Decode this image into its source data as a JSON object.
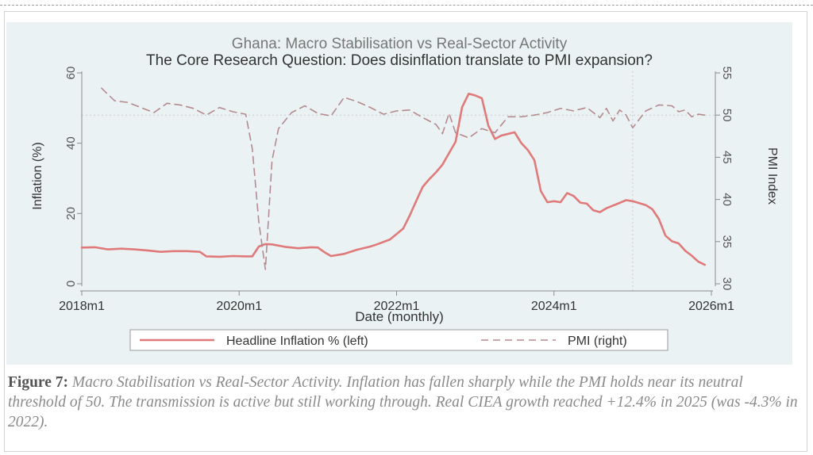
{
  "caption": {
    "label": "Figure 7:",
    "text": "Macro Stabilisation vs Real-Sector Activity. Inflation has fallen sharply while the PMI holds near its neutral threshold of 50. The transmission is active but still working through. Real CIEA growth reached +12.4% in 2025 (was -4.3% in 2022)."
  },
  "chart_data": {
    "type": "line",
    "title": "Ghana: Macro Stabilisation vs Real-Sector Activity",
    "subtitle": "The Core Research Question: Does disinflation translate to PMI expansion?",
    "xlabel": "Date (monthly)",
    "ylabel_left": "Inflation (%)",
    "ylabel_right": "PMI Index",
    "x_ticks": [
      "2018m1",
      "2020m1",
      "2022m1",
      "2024m1",
      "2026m1"
    ],
    "x_range": [
      "2018m1",
      "2026m1"
    ],
    "y_left_ticks": [
      "0",
      "20",
      "40",
      "60"
    ],
    "y_left_range": [
      0,
      60
    ],
    "y_right_ticks": [
      "30",
      "35",
      "40",
      "45",
      "50",
      "55"
    ],
    "y_right_range": [
      30,
      55
    ],
    "reference_lines": {
      "pmi_neutral": 50,
      "vertical_date": "2025m1"
    },
    "legend_position": "bottom",
    "colors": {
      "inflation": "#e07a7a",
      "pmi": "#b58a8e",
      "reference": "#cccccc",
      "axis": "#8c8c8c",
      "title": "#777777"
    },
    "series": [
      {
        "name": "Headline Inflation % (left)",
        "axis": "left",
        "style": "solid",
        "points": [
          [
            "2018m1",
            10.3
          ],
          [
            "2018m3",
            10.4
          ],
          [
            "2018m5",
            9.8
          ],
          [
            "2018m7",
            10.0
          ],
          [
            "2018m9",
            9.8
          ],
          [
            "2018m11",
            9.5
          ],
          [
            "2019m1",
            9.1
          ],
          [
            "2019m3",
            9.3
          ],
          [
            "2019m5",
            9.3
          ],
          [
            "2019m7",
            9.1
          ],
          [
            "2019m8",
            7.8
          ],
          [
            "2019m10",
            7.7
          ],
          [
            "2019m12",
            7.9
          ],
          [
            "2020m2",
            7.8
          ],
          [
            "2020m3",
            7.8
          ],
          [
            "2020m4",
            10.6
          ],
          [
            "2020m5",
            11.3
          ],
          [
            "2020m6",
            11.2
          ],
          [
            "2020m8",
            10.5
          ],
          [
            "2020m10",
            10.1
          ],
          [
            "2020m12",
            10.4
          ],
          [
            "2021m1",
            10.3
          ],
          [
            "2021m2",
            9.0
          ],
          [
            "2021m3",
            7.9
          ],
          [
            "2021m5",
            8.5
          ],
          [
            "2021m7",
            9.7
          ],
          [
            "2021m9",
            10.6
          ],
          [
            "2021m10",
            11.2
          ],
          [
            "2021m12",
            12.6
          ],
          [
            "2022m2",
            15.7
          ],
          [
            "2022m3",
            19.4
          ],
          [
            "2022m4",
            23.6
          ],
          [
            "2022m5",
            27.6
          ],
          [
            "2022m6",
            29.8
          ],
          [
            "2022m7",
            31.7
          ],
          [
            "2022m8",
            33.9
          ],
          [
            "2022m9",
            37.2
          ],
          [
            "2022m10",
            40.4
          ],
          [
            "2022m11",
            50.3
          ],
          [
            "2022m12",
            54.1
          ],
          [
            "2023m1",
            53.6
          ],
          [
            "2023m2",
            52.8
          ],
          [
            "2023m3",
            45.0
          ],
          [
            "2023m4",
            41.2
          ],
          [
            "2023m5",
            42.2
          ],
          [
            "2023m7",
            43.1
          ],
          [
            "2023m8",
            40.1
          ],
          [
            "2023m9",
            38.1
          ],
          [
            "2023m10",
            35.2
          ],
          [
            "2023m11",
            26.4
          ],
          [
            "2023m12",
            23.2
          ],
          [
            "2024m1",
            23.5
          ],
          [
            "2024m2",
            23.2
          ],
          [
            "2024m3",
            25.8
          ],
          [
            "2024m4",
            25.0
          ],
          [
            "2024m5",
            23.1
          ],
          [
            "2024m6",
            22.8
          ],
          [
            "2024m7",
            20.9
          ],
          [
            "2024m8",
            20.4
          ],
          [
            "2024m9",
            21.5
          ],
          [
            "2024m11",
            23.0
          ],
          [
            "2024m12",
            23.8
          ],
          [
            "2025m1",
            23.5
          ],
          [
            "2025m3",
            22.4
          ],
          [
            "2025m4",
            21.2
          ],
          [
            "2025m5",
            18.4
          ],
          [
            "2025m6",
            13.7
          ],
          [
            "2025m7",
            12.1
          ],
          [
            "2025m8",
            11.5
          ],
          [
            "2025m9",
            9.4
          ],
          [
            "2025m10",
            8.0
          ],
          [
            "2025m11",
            6.3
          ],
          [
            "2025m12",
            5.4
          ]
        ]
      },
      {
        "name": "PMI (right)",
        "axis": "right",
        "style": "dashed",
        "points": [
          [
            "2018m4",
            53.2
          ],
          [
            "2018m6",
            51.7
          ],
          [
            "2018m8",
            51.5
          ],
          [
            "2018m10",
            50.9
          ],
          [
            "2018m12",
            50.3
          ],
          [
            "2019m2",
            51.4
          ],
          [
            "2019m4",
            51.2
          ],
          [
            "2019m6",
            50.8
          ],
          [
            "2019m8",
            50.0
          ],
          [
            "2019m10",
            50.9
          ],
          [
            "2019m12",
            50.4
          ],
          [
            "2020m2",
            50.1
          ],
          [
            "2020m3",
            46.0
          ],
          [
            "2020m4",
            37.3
          ],
          [
            "2020m5",
            31.7
          ],
          [
            "2020m6",
            44.6
          ],
          [
            "2020m7",
            48.4
          ],
          [
            "2020m9",
            50.3
          ],
          [
            "2020m11",
            51.1
          ],
          [
            "2021m1",
            50.2
          ],
          [
            "2021m3",
            49.9
          ],
          [
            "2021m5",
            52.1
          ],
          [
            "2021m7",
            51.6
          ],
          [
            "2021m9",
            50.9
          ],
          [
            "2021m11",
            50.1
          ],
          [
            "2022m1",
            50.5
          ],
          [
            "2022m3",
            50.6
          ],
          [
            "2022m5",
            49.7
          ],
          [
            "2022m7",
            48.9
          ],
          [
            "2022m8",
            47.8
          ],
          [
            "2022m9",
            50.2
          ],
          [
            "2022m10",
            47.9
          ],
          [
            "2022m12",
            47.3
          ],
          [
            "2023m2",
            48.4
          ],
          [
            "2023m4",
            47.9
          ],
          [
            "2023m6",
            49.8
          ],
          [
            "2023m8",
            49.8
          ],
          [
            "2023m10",
            50.0
          ],
          [
            "2023m12",
            50.3
          ],
          [
            "2024m2",
            50.8
          ],
          [
            "2024m4",
            50.5
          ],
          [
            "2024m6",
            50.9
          ],
          [
            "2024m8",
            49.7
          ],
          [
            "2024m9",
            50.8
          ],
          [
            "2024m10",
            49.3
          ],
          [
            "2024m11",
            50.6
          ],
          [
            "2024m12",
            50.0
          ],
          [
            "2025m1",
            48.5
          ],
          [
            "2025m3",
            50.5
          ],
          [
            "2025m5",
            51.2
          ],
          [
            "2025m7",
            51.1
          ],
          [
            "2025m8",
            50.4
          ],
          [
            "2025m9",
            50.6
          ],
          [
            "2025m10",
            49.8
          ],
          [
            "2025m11",
            50.1
          ],
          [
            "2025m12",
            50.0
          ]
        ]
      }
    ]
  }
}
